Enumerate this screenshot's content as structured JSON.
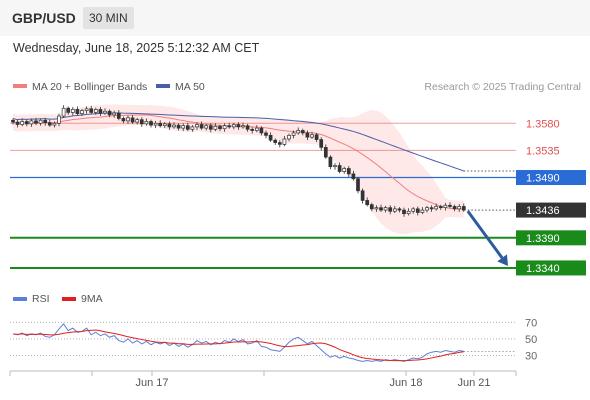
{
  "header": {
    "pair": "GBP/USD",
    "timeframe": "30 MIN",
    "datetime": "Wednesday, June 18, 2025 5:12:32 AM CET"
  },
  "legend": {
    "ma20": "MA 20 + Bollinger Bands",
    "ma50": "MA 50",
    "credit": "Research © 2025 Trading Central",
    "rsi": "RSI",
    "rsi_ma": "9MA"
  },
  "colors": {
    "ma20": "#f08080",
    "bands": "#fde0e0",
    "ma50": "#4a5ea8",
    "resistance": "#e05050",
    "pivot": "#2a6bd6",
    "support": "#1a8a1a",
    "last_price": "#333333",
    "arrow": "#2d5c9e",
    "rsi": "#5b7fd6",
    "rsi_ma": "#e02020"
  },
  "chart_data": [
    {
      "type": "candlestick",
      "ylim": [
        1.332,
        1.3612
      ],
      "levels": [
        {
          "label": "1.3580",
          "value": 1.358,
          "kind": "resistance"
        },
        {
          "label": "1.3535",
          "value": 1.3535,
          "kind": "resistance"
        },
        {
          "label": "1.3490",
          "value": 1.349,
          "kind": "pivot"
        },
        {
          "label": "1.3436",
          "value": 1.3436,
          "kind": "last"
        },
        {
          "label": "1.3390",
          "value": 1.339,
          "kind": "support"
        },
        {
          "label": "1.3340",
          "value": 1.334,
          "kind": "support"
        }
      ],
      "closes": [
        1.3582,
        1.3578,
        1.3583,
        1.3579,
        1.3584,
        1.358,
        1.3585,
        1.3581,
        1.3577,
        1.358,
        1.3592,
        1.3605,
        1.3598,
        1.3603,
        1.3596,
        1.3601,
        1.3604,
        1.3598,
        1.3603,
        1.3597,
        1.36,
        1.3594,
        1.3597,
        1.3588,
        1.3584,
        1.3589,
        1.3582,
        1.3586,
        1.3579,
        1.3583,
        1.3577,
        1.358,
        1.3576,
        1.3579,
        1.3574,
        1.3577,
        1.3572,
        1.3576,
        1.357,
        1.3574,
        1.3578,
        1.3572,
        1.3576,
        1.357,
        1.3575,
        1.3571,
        1.3576,
        1.3574,
        1.3578,
        1.3574,
        1.3576,
        1.357,
        1.3568,
        1.3572,
        1.3564,
        1.356,
        1.3552,
        1.3548,
        1.3545,
        1.3554,
        1.356,
        1.3564,
        1.3568,
        1.3564,
        1.3557,
        1.3561,
        1.3553,
        1.354,
        1.3524,
        1.3508,
        1.351,
        1.35,
        1.3505,
        1.3496,
        1.3488,
        1.3468,
        1.3452,
        1.3445,
        1.3438,
        1.344,
        1.3436,
        1.344,
        1.3434,
        1.3438,
        1.3436,
        1.343,
        1.3434,
        1.3438,
        1.3432,
        1.3436,
        1.344,
        1.3438,
        1.3442,
        1.344,
        1.3444,
        1.3442,
        1.3438,
        1.3442,
        1.3436
      ],
      "rsi": [
        56,
        55,
        57,
        54,
        56,
        55,
        57,
        53,
        52,
        55,
        62,
        68,
        60,
        63,
        58,
        59,
        63,
        55,
        58,
        54,
        56,
        52,
        54,
        48,
        46,
        50,
        45,
        48,
        44,
        47,
        43,
        46,
        44,
        46,
        42,
        45,
        41,
        44,
        40,
        43,
        48,
        45,
        47,
        43,
        46,
        44,
        48,
        46,
        50,
        47,
        49,
        44,
        45,
        48,
        41,
        40,
        37,
        36,
        35,
        40,
        46,
        50,
        52,
        48,
        44,
        47,
        42,
        37,
        32,
        28,
        30,
        27,
        29,
        27,
        26,
        24,
        23,
        24,
        23,
        24,
        23,
        25,
        24,
        25,
        24,
        23,
        25,
        27,
        26,
        28,
        32,
        34,
        35,
        34,
        36,
        35,
        34,
        36,
        35
      ],
      "rsi_levels": [
        70,
        50,
        30
      ],
      "rsi_ylim": [
        15,
        80
      ],
      "projection_target": 1.334,
      "x_tick_labels": [
        "Jun 17",
        "Jun 18",
        "Jun 21"
      ]
    }
  ]
}
